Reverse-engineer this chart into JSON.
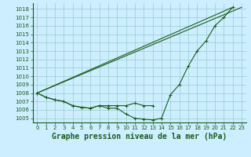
{
  "title": "Graphe pression niveau de la mer (hPa)",
  "yticks": [
    1005,
    1006,
    1007,
    1008,
    1009,
    1010,
    1011,
    1012,
    1013,
    1014,
    1015,
    1016,
    1017,
    1018
  ],
  "xticks": [
    0,
    1,
    2,
    3,
    4,
    5,
    6,
    7,
    8,
    9,
    10,
    11,
    12,
    13,
    14,
    15,
    16,
    17,
    18,
    19,
    20,
    21,
    22,
    23
  ],
  "bg_color": "#cceeff",
  "grid_color": "#99cccc",
  "line_color": "#1a5c1a",
  "text_color": "#1a5c1a",
  "title_fontsize": 7,
  "tick_fontsize": 5,
  "xlim_min": -0.5,
  "xlim_max": 23.5,
  "ylim_min": 1004.5,
  "ylim_max": 1018.7,
  "y1": [
    1008.0,
    1007.5,
    1007.2,
    1007.0,
    1006.5,
    1006.3,
    1006.2,
    1006.5,
    1006.2,
    1006.2,
    1005.5,
    1005.0,
    1004.9,
    1004.8,
    1005.0,
    1007.8,
    1009.0,
    1011.2,
    1013.0,
    1014.2,
    1016.0,
    1017.0,
    1018.2,
    null
  ],
  "y2": [
    1008.0,
    1007.5,
    1007.2,
    1007.0,
    1006.5,
    1006.3,
    1006.2,
    1006.5,
    1006.5,
    1006.5,
    1006.5,
    1006.8,
    1006.5,
    1006.5,
    null,
    null,
    null,
    null,
    null,
    null,
    null,
    null,
    null,
    null
  ],
  "line3_x": [
    0,
    22
  ],
  "line3_y": [
    1008.0,
    1018.2
  ],
  "line4_x": [
    0,
    23
  ],
  "line4_y": [
    1008.0,
    1018.2
  ]
}
